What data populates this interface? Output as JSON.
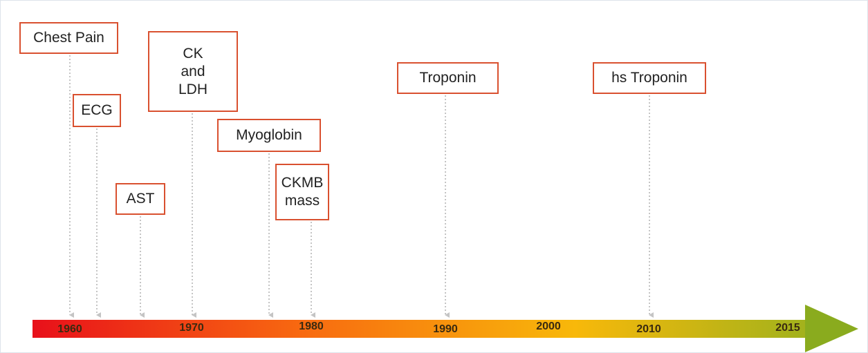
{
  "nodes": [
    {
      "lines": [
        "Chest Pain"
      ]
    },
    {
      "lines": [
        "ECG"
      ]
    },
    {
      "lines": [
        "AST"
      ]
    },
    {
      "lines": [
        "CK",
        "and",
        "LDH"
      ]
    },
    {
      "lines": [
        "Myoglobin"
      ]
    },
    {
      "lines": [
        "CKMB",
        "mass"
      ]
    },
    {
      "lines": [
        "Troponin"
      ]
    },
    {
      "lines": [
        "hs Troponin"
      ]
    }
  ],
  "years": [
    "1960",
    "1970",
    "1980",
    "1990",
    "2000",
    "2010",
    "2015"
  ]
}
